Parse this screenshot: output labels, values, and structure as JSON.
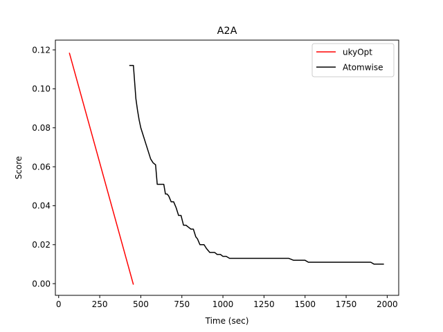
{
  "chart_data": {
    "type": "line",
    "title": "A2A",
    "xlabel": "Time (sec)",
    "ylabel": "Score",
    "xlim": [
      -20,
      2070
    ],
    "ylim": [
      -0.006,
      0.125
    ],
    "xticks": [
      0,
      250,
      500,
      750,
      1000,
      1250,
      1500,
      1750,
      2000
    ],
    "xtick_labels": [
      "0",
      "250",
      "500",
      "750",
      "1000",
      "1250",
      "1500",
      "1750",
      "2000"
    ],
    "yticks": [
      0.0,
      0.02,
      0.04,
      0.06,
      0.08,
      0.1,
      0.12
    ],
    "ytick_labels": [
      "0.00",
      "0.02",
      "0.04",
      "0.06",
      "0.08",
      "0.10",
      "0.12"
    ],
    "grid": false,
    "legend_position": "top-right",
    "series": [
      {
        "name": "ukyOpt",
        "color": "#ff0000",
        "x": [
          65,
          455
        ],
        "y": [
          0.1185,
          -0.0005
        ]
      },
      {
        "name": "Atomwise",
        "color": "#000000",
        "x": [
          430,
          455,
          470,
          480,
          490,
          500,
          515,
          530,
          545,
          560,
          575,
          590,
          600,
          610,
          640,
          650,
          660,
          670,
          685,
          700,
          715,
          730,
          745,
          760,
          775,
          790,
          805,
          820,
          835,
          845,
          860,
          870,
          885,
          900,
          920,
          935,
          950,
          965,
          985,
          1000,
          1020,
          1040,
          1060,
          1080,
          1100,
          1150,
          1200,
          1300,
          1400,
          1430,
          1460,
          1500,
          1520,
          1550,
          1600,
          1700,
          1800,
          1900,
          1920,
          1980
        ],
        "y": [
          0.112,
          0.112,
          0.095,
          0.089,
          0.084,
          0.08,
          0.076,
          0.072,
          0.068,
          0.064,
          0.062,
          0.061,
          0.051,
          0.051,
          0.051,
          0.046,
          0.046,
          0.045,
          0.042,
          0.042,
          0.039,
          0.035,
          0.035,
          0.03,
          0.03,
          0.029,
          0.028,
          0.028,
          0.024,
          0.023,
          0.02,
          0.02,
          0.02,
          0.018,
          0.016,
          0.016,
          0.016,
          0.015,
          0.015,
          0.014,
          0.014,
          0.013,
          0.013,
          0.013,
          0.013,
          0.013,
          0.013,
          0.013,
          0.013,
          0.012,
          0.012,
          0.012,
          0.011,
          0.011,
          0.011,
          0.011,
          0.011,
          0.011,
          0.01,
          0.01
        ]
      }
    ]
  }
}
